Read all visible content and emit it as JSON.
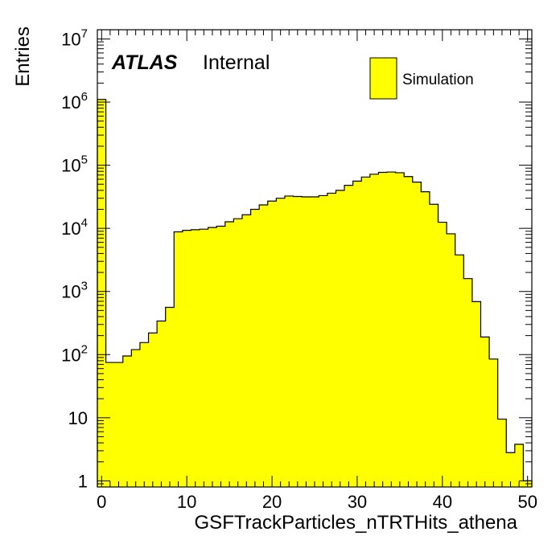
{
  "chart_data": {
    "type": "bar",
    "xlabel": "GSFTrackParticles_nTRTHits_athena",
    "ylabel": "Entries",
    "xlim": [
      -0.5,
      50.5
    ],
    "ylim": [
      0.8,
      14000000
    ],
    "yscale": "log",
    "grid": false,
    "legend_position": "top-right",
    "fill_color": "#ffff00",
    "line_color": "#000000",
    "label_main": "ATLAS",
    "label_sub": "Internal",
    "x_ticks": [
      "0",
      "10",
      "20",
      "30",
      "40",
      "50"
    ],
    "y_ticks": [
      {
        "value": 1,
        "base": "1",
        "exp": ""
      },
      {
        "value": 10,
        "base": "10",
        "exp": ""
      },
      {
        "value": 100,
        "base": "10",
        "exp": "2"
      },
      {
        "value": 1000,
        "base": "10",
        "exp": "3"
      },
      {
        "value": 10000,
        "base": "10",
        "exp": "4"
      },
      {
        "value": 100000,
        "base": "10",
        "exp": "5"
      },
      {
        "value": 1000000,
        "base": "10",
        "exp": "6"
      },
      {
        "value": 10000000,
        "base": "10",
        "exp": "7"
      }
    ],
    "series": [
      {
        "name": "Simulation",
        "x": [
          0,
          1,
          2,
          3,
          4,
          5,
          6,
          7,
          8,
          9,
          10,
          11,
          12,
          13,
          14,
          15,
          16,
          17,
          18,
          19,
          20,
          21,
          22,
          23,
          24,
          25,
          26,
          27,
          28,
          29,
          30,
          31,
          32,
          33,
          34,
          35,
          36,
          37,
          38,
          39,
          40,
          41,
          42,
          43,
          44,
          45,
          46,
          47,
          48,
          49,
          50
        ],
        "values": [
          1100000,
          75,
          75,
          95,
          120,
          155,
          220,
          340,
          560,
          8800,
          9300,
          9500,
          9700,
          10300,
          10800,
          12700,
          14200,
          16400,
          20000,
          23500,
          27000,
          30000,
          32500,
          32000,
          31500,
          31500,
          33000,
          36000,
          40000,
          48000,
          56000,
          65000,
          72000,
          77000,
          78000,
          76000,
          66000,
          54000,
          38000,
          24000,
          12500,
          8200,
          3800,
          1600,
          690,
          190,
          85,
          9.5,
          2.8,
          3.8,
          1
        ]
      }
    ]
  }
}
